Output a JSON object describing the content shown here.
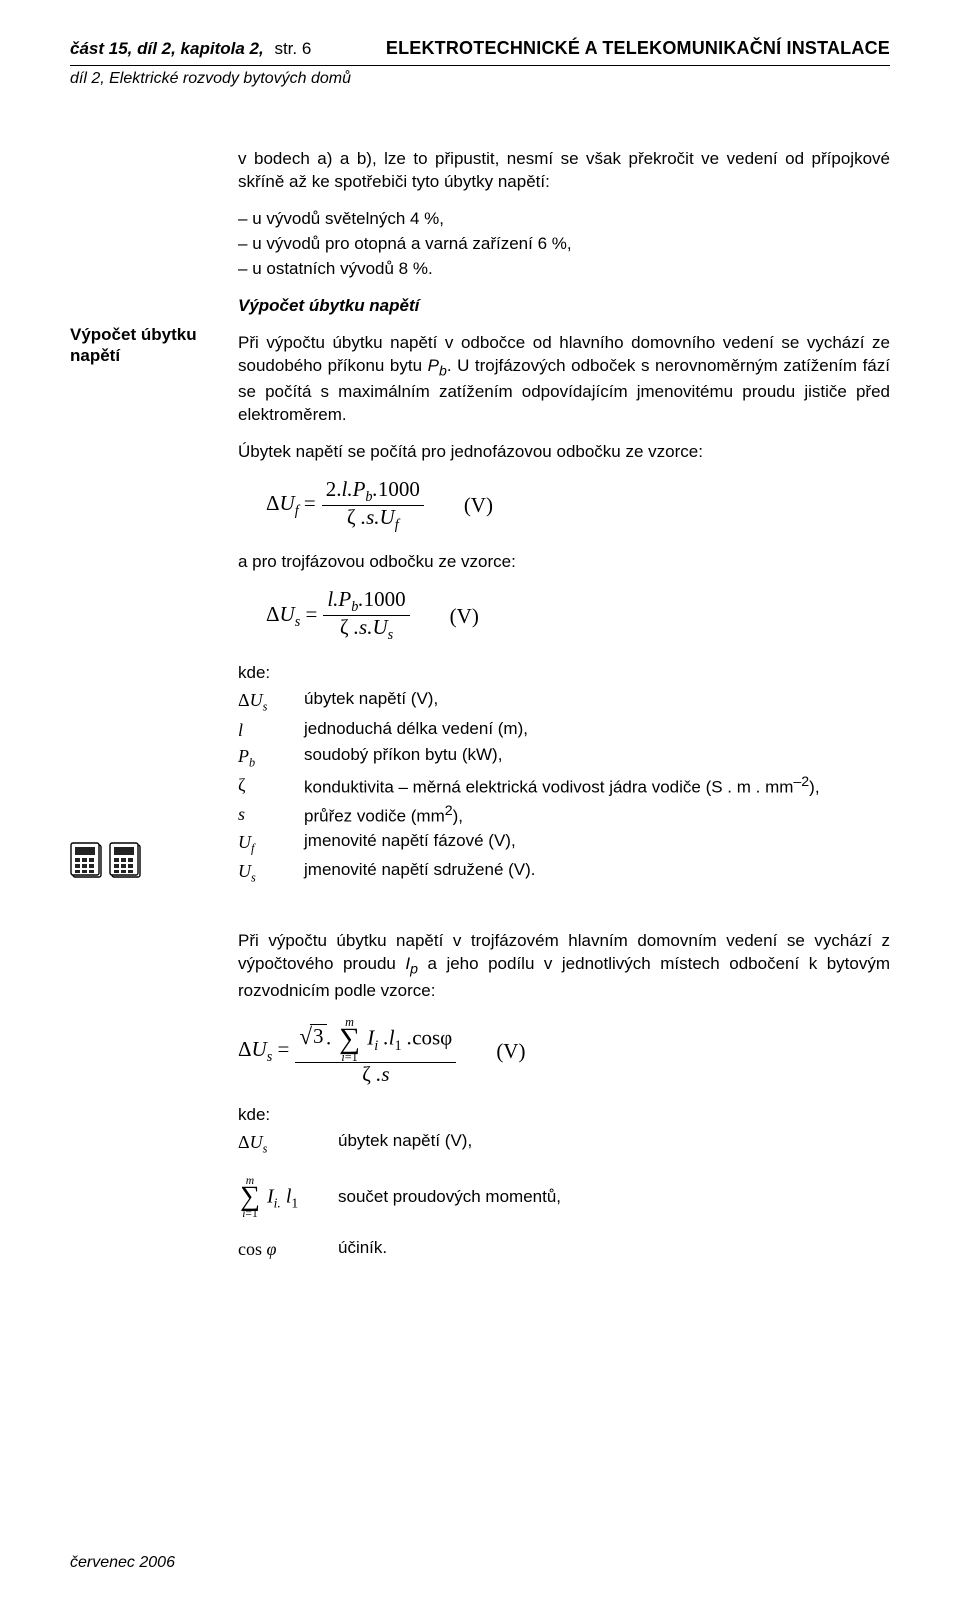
{
  "header": {
    "left_prefix": "část 15, díl 2, kapitola 2,",
    "left_page": "str. 6",
    "right": "ELEKTROTECHNICKÉ A TELEKOMUNIKAČNÍ INSTALACE",
    "sub": "díl 2, Elektrické rozvody bytových domů"
  },
  "margin": {
    "label": "Výpočet úbytku napětí"
  },
  "intro": {
    "lead": "v bodech a) a b), lze to připustit, nesmí se však překročit ve vedení od přípojkové skříně až ke spotřebiči tyto úbytky napětí:",
    "items": [
      "u vývodů světelných 4 %,",
      "u vývodů pro otopná a varná zařízení 6 %,",
      "u ostatních vývodů 8 %."
    ]
  },
  "section_title": "Výpočet úbytku napětí",
  "p1": "Při výpočtu úbytku napětí v odbočce od hlavního domovního vedení se vychází ze soudobého příkonu bytu Pb. U trojfázových odboček s nerovnoměrným zatížením fází se počítá s maximálním zatížením odpovídajícím jmenovitému proudu jističe před elektroměrem.",
  "p1_html": "Při výpočtu úbytku napětí v odbočce od hlavního domovního vedení se vychází ze soudobého příkonu bytu <i>P<sub>b</sub></i>. U trojfázových odboček s nerovnoměrným zatížením fází se počítá s maximálním zatížením odpovídajícím jmenovitému proudu jističe před elektroměrem.",
  "p2": "Úbytek napětí se počítá pro jednofázovou odbočku ze vzorce:",
  "formula1": {
    "lhs": "ΔU_f =",
    "num": "2.l.P_b.1000",
    "den": "ζ .s.U_f",
    "unit": "(V)"
  },
  "p3": "a pro trojfázovou odbočku ze vzorce:",
  "formula2": {
    "lhs": "ΔU_s =",
    "num": "l.P_b.1000",
    "den": "ζ .s.U_s",
    "unit": "(V)"
  },
  "kde": "kde:",
  "defs": [
    {
      "sym": "ΔU_s",
      "txt": "úbytek napětí (V),"
    },
    {
      "sym": "l",
      "txt": "jednoduchá délka vedení (m),"
    },
    {
      "sym": "P_b",
      "txt": "soudobý příkon bytu (kW),"
    },
    {
      "sym": "ζ",
      "txt": "konduktivita – měrná elektrická vodivost jádra vodiče (S . m . mm⁻²),"
    },
    {
      "sym": "s",
      "txt": "průřez vodiče (mm²),"
    },
    {
      "sym": "U_f",
      "txt": "jmenovité napětí fázové (V),"
    },
    {
      "sym": "U_s",
      "txt": "jmenovité napětí sdružené (V)."
    }
  ],
  "p4_html": "Při výpočtu úbytku napětí v trojfázovém hlavním domovním vedení se vychází z výpočtového proudu <i>I<sub>p</sub></i> a jeho podílu v jednotlivých místech odbočení k bytovým rozvodnicím podle vzorce:",
  "formula3": {
    "lhs": "ΔU_s =",
    "sqrt_arg": "3",
    "sum_upper": "m",
    "sum_lower": "i=1",
    "sum_body": "I_i .l_1 .cosφ",
    "den": "ζ .s",
    "unit": "(V)"
  },
  "defs2": [
    {
      "sym": "ΔU_s",
      "txt": "úbytek napětí (V),"
    }
  ],
  "defs3_sum": {
    "upper": "m",
    "lower": "i=1",
    "body": "I_i. l_1",
    "txt": "součet proudových momentů,"
  },
  "defs4": {
    "sym": "cos φ",
    "txt": "účiník."
  },
  "footer": "červenec 2006",
  "colors": {
    "text": "#000000",
    "bg": "#ffffff",
    "rule": "#000000"
  },
  "typography": {
    "body_font": "sans-serif (Myriad-like)",
    "math_font": "serif (Times-like)",
    "body_size_pt": 11,
    "header_right_weight": 800
  }
}
